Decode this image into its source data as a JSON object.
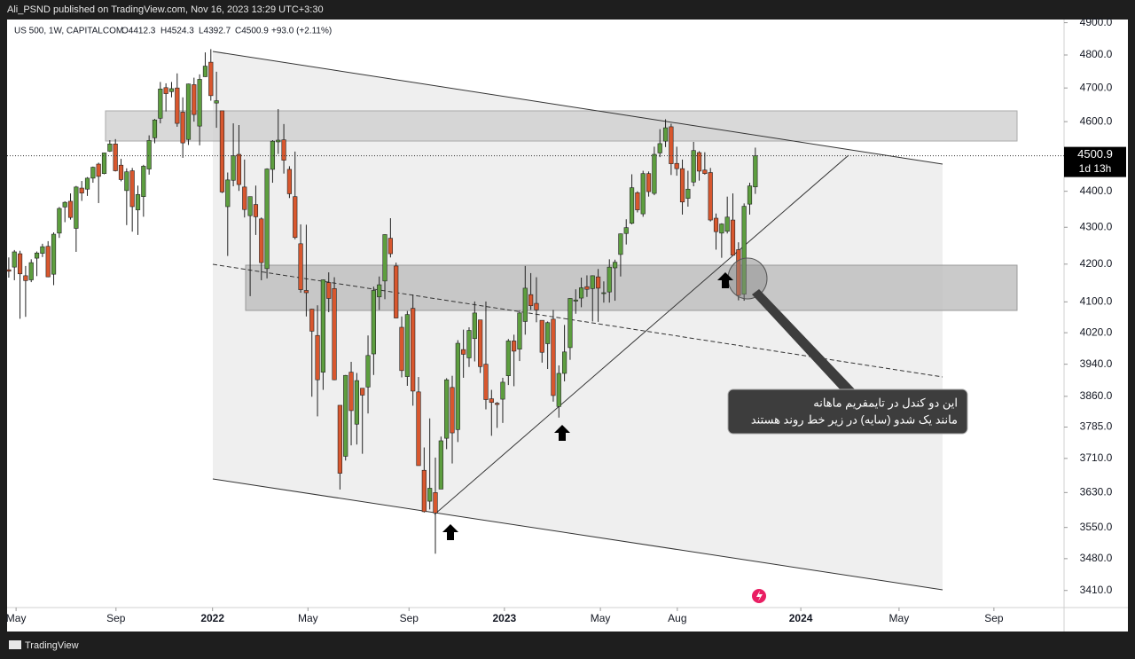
{
  "header": {
    "published": "Ali_PSND published on TradingView.com, Nov 16, 2023 13:29 UTC+3:30",
    "footer": "TradingView"
  },
  "chart_data": {
    "type": "candlestick",
    "symbol": "US 500, 1W, CAPITALCOM",
    "ohlc_text": [
      "O4412.3",
      "H4524.3",
      "L4392.7",
      "C4500.9",
      "+93.0 (+2.11%)"
    ],
    "log_scale": true,
    "up_color": "#5d9e3f",
    "down_color": "#d8572e",
    "ylim": [
      3373,
      4910
    ],
    "yticks": [
      {
        "value": 4900,
        "label": "4900.0"
      },
      {
        "value": 4800,
        "label": "4800.0"
      },
      {
        "value": 4700,
        "label": "4700.0"
      },
      {
        "value": 4600,
        "label": "4600.0"
      },
      {
        "value": 4400,
        "label": "4400.0"
      },
      {
        "value": 4300,
        "label": "4300.0"
      },
      {
        "value": 4200,
        "label": "4200.0"
      },
      {
        "value": 4100,
        "label": "4100.0"
      },
      {
        "value": 4020,
        "label": "4020.0"
      },
      {
        "value": 3940,
        "label": "3940.0"
      },
      {
        "value": 3860,
        "label": "3860.0"
      },
      {
        "value": 3785,
        "label": "3785.0"
      },
      {
        "value": 3710,
        "label": "3710.0"
      },
      {
        "value": 3630,
        "label": "3630.0"
      },
      {
        "value": 3550,
        "label": "3550.0"
      },
      {
        "value": 3480,
        "label": "3480.0"
      },
      {
        "value": 3410,
        "label": "3410.0"
      }
    ],
    "xlim": [
      -0.3,
      188
    ],
    "xticks": [
      {
        "value": 1.3,
        "label": "May"
      },
      {
        "value": 19.1,
        "label": "Sep"
      },
      {
        "value": 36.3,
        "label": "2022"
      },
      {
        "value": 53.3,
        "label": "May"
      },
      {
        "value": 71.3,
        "label": "Sep"
      },
      {
        "value": 88.3,
        "label": "2023"
      },
      {
        "value": 105.4,
        "label": "May"
      },
      {
        "value": 119.1,
        "label": "Aug"
      },
      {
        "value": 141.1,
        "label": "2024"
      },
      {
        "value": 158.6,
        "label": "May"
      },
      {
        "value": 175.5,
        "label": "Sep"
      }
    ],
    "last_price": 4500.9,
    "countdown": "1d 13h",
    "annotation": [
      "این دو کندل در تایمفریم ماهانه",
      "مانند یک شدو (سایه) در زیر خط روند هستند"
    ],
    "candles": [
      [
        4185,
        4218,
        4164,
        4181
      ],
      [
        4192,
        4238,
        4157,
        4233
      ],
      [
        4228,
        4236,
        4056,
        4174
      ],
      [
        4169,
        4195,
        4061,
        4156
      ],
      [
        4158,
        4213,
        4152,
        4204
      ],
      [
        4216,
        4234,
        4168,
        4230
      ],
      [
        4229,
        4255,
        4219,
        4247
      ],
      [
        4248,
        4262,
        4165,
        4166
      ],
      [
        4173,
        4286,
        4144,
        4281
      ],
      [
        4284,
        4356,
        4271,
        4352
      ],
      [
        4356,
        4372,
        4314,
        4369
      ],
      [
        4372,
        4394,
        4321,
        4327
      ],
      [
        4297,
        4415,
        4233,
        4412
      ],
      [
        4409,
        4429,
        4373,
        4395
      ],
      [
        4406,
        4440,
        4387,
        4437
      ],
      [
        4437,
        4470,
        4424,
        4468
      ],
      [
        4477,
        4481,
        4367,
        4442
      ],
      [
        4450,
        4510,
        4448,
        4509
      ],
      [
        4514,
        4546,
        4512,
        4535
      ],
      [
        4535,
        4549,
        4456,
        4458
      ],
      [
        4474,
        4492,
        4428,
        4433
      ],
      [
        4402,
        4465,
        4306,
        4455
      ],
      [
        4458,
        4466,
        4288,
        4357
      ],
      [
        4348,
        4416,
        4279,
        4391
      ],
      [
        4385,
        4475,
        4329,
        4471
      ],
      [
        4463,
        4560,
        4447,
        4545
      ],
      [
        4553,
        4608,
        4537,
        4605
      ],
      [
        4610,
        4718,
        4595,
        4697
      ],
      [
        4701,
        4714,
        4630,
        4683
      ],
      [
        4689,
        4718,
        4672,
        4698
      ],
      [
        4700,
        4744,
        4585,
        4595
      ],
      [
        4628,
        4672,
        4495,
        4538
      ],
      [
        4548,
        4713,
        4532,
        4712
      ],
      [
        4710,
        4731,
        4600,
        4621
      ],
      [
        4587,
        4741,
        4531,
        4726
      ],
      [
        4734,
        4808,
        4733,
        4766
      ],
      [
        4778,
        4818,
        4662,
        4677
      ],
      [
        4655,
        4749,
        4582,
        4662
      ],
      [
        4632,
        4632,
        4395,
        4398
      ],
      [
        4357,
        4453,
        4222,
        4432
      ],
      [
        4431,
        4595,
        4414,
        4501
      ],
      [
        4505,
        4590,
        4401,
        4419
      ],
      [
        4412,
        4490,
        4327,
        4349
      ],
      [
        4332,
        4385,
        4115,
        4385
      ],
      [
        4363,
        4416,
        4279,
        4329
      ],
      [
        4323,
        4327,
        4157,
        4204
      ],
      [
        4188,
        4465,
        4162,
        4463
      ],
      [
        4462,
        4546,
        4424,
        4543
      ],
      [
        4541,
        4637,
        4506,
        4546
      ],
      [
        4547,
        4593,
        4450,
        4488
      ],
      [
        4462,
        4471,
        4381,
        4393
      ],
      [
        4385,
        4513,
        4267,
        4272
      ],
      [
        4255,
        4308,
        4124,
        4132
      ],
      [
        4130,
        4307,
        4062,
        4124
      ],
      [
        4081,
        4082,
        3859,
        4024
      ],
      [
        4013,
        4091,
        3811,
        3901
      ],
      [
        3920,
        4159,
        3876,
        4158
      ],
      [
        4151,
        4178,
        4073,
        4109
      ],
      [
        4135,
        4165,
        3900,
        3901
      ],
      [
        3838,
        3838,
        3637,
        3675
      ],
      [
        3715,
        3913,
        3705,
        3912
      ],
      [
        3920,
        3946,
        3741,
        3825
      ],
      [
        3792,
        3918,
        3743,
        3899
      ],
      [
        3880,
        3880,
        3721,
        3863
      ],
      [
        3883,
        4013,
        3818,
        3962
      ],
      [
        3966,
        4140,
        3913,
        4130
      ],
      [
        4113,
        4167,
        4079,
        4145
      ],
      [
        4155,
        4281,
        4107,
        4280
      ],
      [
        4270,
        4325,
        4218,
        4228
      ],
      [
        4195,
        4204,
        4057,
        4058
      ],
      [
        4034,
        4062,
        3907,
        3924
      ],
      [
        3909,
        4076,
        3886,
        4067
      ],
      [
        4083,
        4119,
        3837,
        3873
      ],
      [
        3871,
        3908,
        3693,
        3693
      ],
      [
        3682,
        3736,
        3584,
        3586
      ],
      [
        3610,
        3806,
        3591,
        3640
      ],
      [
        3630,
        3712,
        3491,
        3583
      ],
      [
        3638,
        3762,
        3647,
        3752
      ],
      [
        3758,
        3905,
        3732,
        3901
      ],
      [
        3882,
        3911,
        3698,
        3771
      ],
      [
        3779,
        4001,
        3749,
        3993
      ],
      [
        3977,
        4028,
        3906,
        3965
      ],
      [
        3956,
        4034,
        3933,
        4026
      ],
      [
        4005,
        4101,
        3947,
        4071
      ],
      [
        4053,
        4053,
        3918,
        3934
      ],
      [
        3940,
        4101,
        3828,
        3852
      ],
      [
        3854,
        3876,
        3764,
        3845
      ],
      [
        3843,
        3846,
        3783,
        3840
      ],
      [
        3853,
        3906,
        3795,
        3895
      ],
      [
        3911,
        4004,
        3888,
        3999
      ],
      [
        3999,
        4015,
        3885,
        3973
      ],
      [
        3978,
        4078,
        3948,
        4071
      ],
      [
        4049,
        4195,
        4015,
        4136
      ],
      [
        4119,
        4176,
        4079,
        4090
      ],
      [
        4096,
        4165,
        4047,
        4079
      ],
      [
        4052,
        4052,
        3944,
        3970
      ],
      [
        3992,
        4049,
        3928,
        4046
      ],
      [
        4055,
        4079,
        3847,
        3862
      ],
      [
        3835,
        3937,
        3808,
        3917
      ],
      [
        3917,
        4040,
        3897,
        3971
      ],
      [
        3982,
        4110,
        3951,
        4109
      ],
      [
        4102,
        4133,
        4069,
        4105
      ],
      [
        4110,
        4164,
        4086,
        4137
      ],
      [
        4140,
        4170,
        4113,
        4133
      ],
      [
        4135,
        4170,
        4049,
        4169
      ],
      [
        4166,
        4187,
        4048,
        4136
      ],
      [
        4124,
        4154,
        4098,
        4124
      ],
      [
        4126,
        4213,
        4098,
        4192
      ],
      [
        4190,
        4212,
        4103,
        4205
      ],
      [
        4226,
        4283,
        4167,
        4282
      ],
      [
        4283,
        4322,
        4253,
        4299
      ],
      [
        4311,
        4448,
        4308,
        4410
      ],
      [
        4396,
        4400,
        4341,
        4348
      ],
      [
        4337,
        4458,
        4329,
        4450
      ],
      [
        4450,
        4456,
        4385,
        4399
      ],
      [
        4394,
        4527,
        4389,
        4505
      ],
      [
        4509,
        4578,
        4497,
        4536
      ],
      [
        4543,
        4607,
        4526,
        4582
      ],
      [
        4585,
        4594,
        4446,
        4478
      ],
      [
        4479,
        4527,
        4444,
        4464
      ],
      [
        4464,
        4490,
        4335,
        4370
      ],
      [
        4380,
        4458,
        4357,
        4406
      ],
      [
        4426,
        4541,
        4414,
        4516
      ],
      [
        4510,
        4514,
        4430,
        4457
      ],
      [
        4460,
        4511,
        4447,
        4450
      ],
      [
        4453,
        4466,
        4316,
        4320
      ],
      [
        4325,
        4338,
        4239,
        4288
      ],
      [
        4284,
        4311,
        4217,
        4309
      ],
      [
        4289,
        4385,
        4283,
        4328
      ],
      [
        4320,
        4394,
        4223,
        4224
      ],
      [
        4239,
        4259,
        4104,
        4117
      ],
      [
        4120,
        4366,
        4103,
        4358
      ],
      [
        4364,
        4424,
        4335,
        4415
      ],
      [
        4412.3,
        4524.3,
        4392.7,
        4500.9
      ]
    ]
  }
}
